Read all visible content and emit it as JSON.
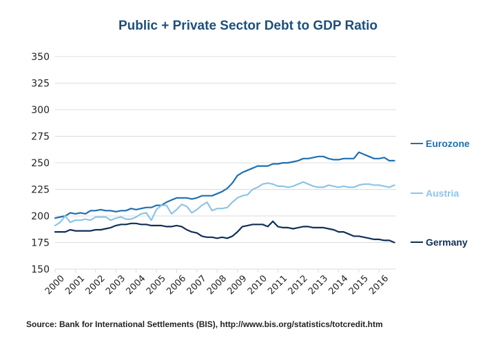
{
  "chart_data": {
    "type": "line",
    "title": "Public + Private Sector Debt to GDP Ratio",
    "xlabel": "",
    "ylabel": "",
    "ylim": [
      150,
      350
    ],
    "yticks": [
      150,
      175,
      200,
      225,
      250,
      275,
      300,
      325,
      350
    ],
    "xlim": [
      2000,
      2016.85
    ],
    "xticks": [
      2000,
      2001,
      2002,
      2003,
      2004,
      2005,
      2006,
      2007,
      2008,
      2009,
      2010,
      2011,
      2012,
      2013,
      2014,
      2015,
      2016
    ],
    "grid": "horizontal",
    "legend_placement": "right",
    "x": [
      2000.0,
      2000.25,
      2000.5,
      2000.75,
      2001.0,
      2001.25,
      2001.5,
      2001.75,
      2002.0,
      2002.25,
      2002.5,
      2002.75,
      2003.0,
      2003.25,
      2003.5,
      2003.75,
      2004.0,
      2004.25,
      2004.5,
      2004.75,
      2005.0,
      2005.25,
      2005.5,
      2005.75,
      2006.0,
      2006.25,
      2006.5,
      2006.75,
      2007.0,
      2007.25,
      2007.5,
      2007.75,
      2008.0,
      2008.25,
      2008.5,
      2008.75,
      2009.0,
      2009.25,
      2009.5,
      2009.75,
      2010.0,
      2010.25,
      2010.5,
      2010.75,
      2011.0,
      2011.25,
      2011.5,
      2011.75,
      2012.0,
      2012.25,
      2012.5,
      2012.75,
      2013.0,
      2013.25,
      2013.5,
      2013.75,
      2014.0,
      2014.25,
      2014.5,
      2014.75,
      2015.0,
      2015.25,
      2015.5,
      2015.75,
      2016.0,
      2016.25,
      2016.5,
      2016.75
    ],
    "series": [
      {
        "name": "Eurozone",
        "color": "#1f6fae",
        "values": [
          198,
          199,
          200,
          203,
          202,
          203,
          202,
          205,
          205,
          206,
          205,
          205,
          204,
          205,
          205,
          207,
          206,
          207,
          208,
          208,
          210,
          210,
          213,
          215,
          217,
          217,
          217,
          216,
          217,
          219,
          219,
          219,
          221,
          223,
          226,
          231,
          238,
          241,
          243,
          245,
          247,
          247,
          247,
          249,
          249,
          250,
          250,
          251,
          252,
          254,
          254,
          255,
          256,
          256,
          254,
          253,
          253,
          254,
          254,
          254,
          260,
          258,
          256,
          254,
          254,
          255,
          252,
          252
        ]
      },
      {
        "name": "Austria",
        "color": "#8cc4e8",
        "values": [
          191,
          194,
          200,
          194,
          196,
          196,
          197,
          196,
          199,
          199,
          199,
          196,
          198,
          199,
          197,
          197,
          199,
          202,
          203,
          196,
          206,
          210,
          210,
          202,
          206,
          211,
          209,
          203,
          206,
          210,
          213,
          205,
          207,
          207,
          208,
          213,
          217,
          219,
          220,
          225,
          227,
          230,
          231,
          230,
          228,
          228,
          227,
          228,
          230,
          232,
          230,
          228,
          227,
          227,
          229,
          228,
          227,
          228,
          227,
          227,
          229,
          230,
          230,
          229,
          229,
          228,
          227,
          229
        ]
      },
      {
        "name": "Germany",
        "color": "#0f2f55",
        "values": [
          185,
          185,
          185,
          187,
          186,
          186,
          186,
          186,
          187,
          187,
          188,
          189,
          191,
          192,
          192,
          193,
          193,
          192,
          192,
          191,
          191,
          191,
          190,
          190,
          191,
          190,
          187,
          185,
          184,
          181,
          180,
          180,
          179,
          180,
          179,
          181,
          185,
          190,
          191,
          192,
          192,
          192,
          190,
          195,
          190,
          189,
          189,
          188,
          189,
          190,
          190,
          189,
          189,
          189,
          188,
          187,
          185,
          185,
          183,
          181,
          181,
          180,
          179,
          178,
          178,
          177,
          177,
          175
        ]
      }
    ],
    "source": "Source: Bank for International Settlements (BIS), http://www.bis.org/statistics/totcredit.htm"
  }
}
